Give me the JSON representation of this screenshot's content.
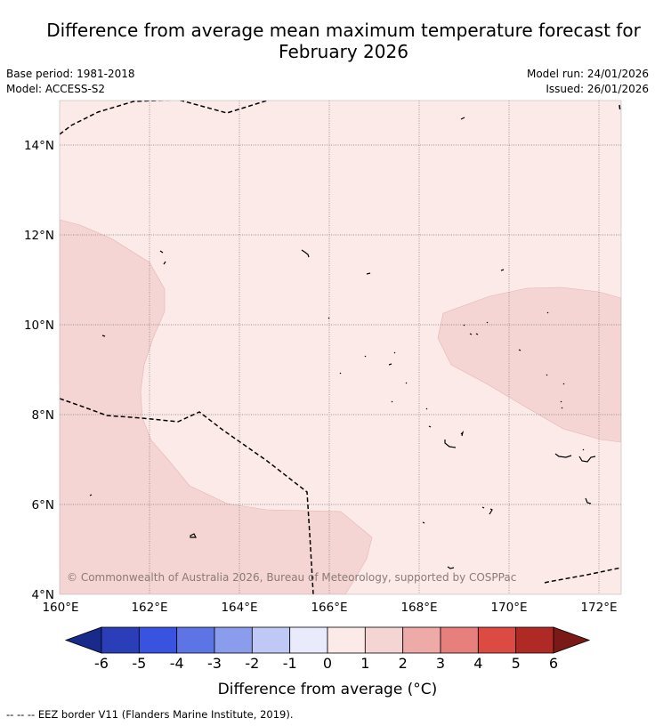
{
  "title_line1": "Difference from average mean maximum temperature forecast for",
  "title_line2": "February 2026",
  "base_period": "Base period: 1981-2018",
  "model": "Model: ACCESS-S2",
  "model_run": "Model run: 24/01/2026",
  "issued": "Issued: 26/01/2026",
  "map": {
    "lat_labels": [
      "14°N",
      "12°N",
      "10°N",
      "8°N",
      "6°N",
      "4°N"
    ],
    "lon_labels": [
      "160°E",
      "162°E",
      "164°E",
      "166°E",
      "168°E",
      "170°E",
      "172°E"
    ],
    "copyright": "© Commonwealth of Australia 2026, Bureau of Meteorology, supported by COSPPac",
    "colors": {
      "anomaly_0_to_1": "#fbeae8",
      "anomaly_1_to_2": "#f5d5d3"
    }
  },
  "colorbar": {
    "ticks": [
      "-6",
      "-5",
      "-4",
      "-3",
      "-2",
      "-1",
      "0",
      "1",
      "2",
      "3",
      "4",
      "5",
      "6"
    ],
    "colors": [
      "#1a2a8a",
      "#2a3eb8",
      "#3753e0",
      "#5d74e5",
      "#8a9ded",
      "#c0c8f5",
      "#e9ebfc",
      "#fbeae8",
      "#f5d5d3",
      "#eeaaa7",
      "#e7807d",
      "#db4b42",
      "#b02a25",
      "#7a1a18"
    ],
    "label": "Difference from average (°C)"
  },
  "footer": "--  --  -- EEZ border V11 (Flanders Marine Institute, 2019)."
}
